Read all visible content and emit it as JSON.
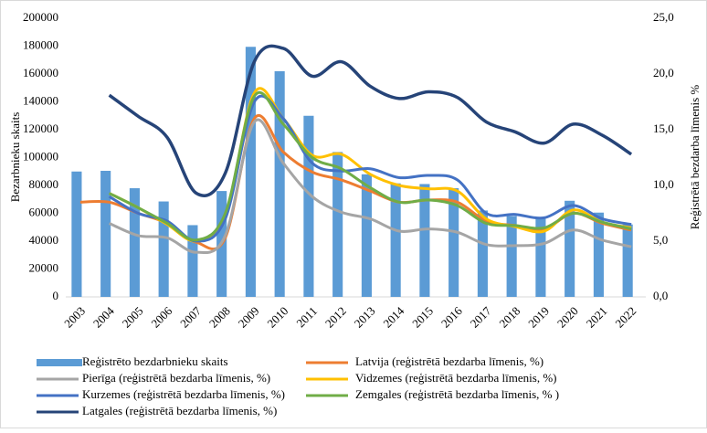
{
  "chart_data": {
    "type": "bar-line",
    "y_label": "Bezarbnieku skaits",
    "y2_label": "Reģistrētā bezdarba līmenis %",
    "categories": [
      "2003",
      "2004",
      "2005",
      "2006",
      "2007",
      "2008",
      "2009",
      "2010",
      "2011",
      "2012",
      "2013",
      "2014",
      "2015",
      "2016",
      "2017",
      "2018",
      "2019",
      "2020",
      "2021",
      "2022"
    ],
    "ylim": [
      0,
      200000
    ],
    "yticks": [
      0,
      20000,
      40000,
      60000,
      80000,
      100000,
      120000,
      140000,
      160000,
      180000,
      200000
    ],
    "y2lim": [
      0,
      25
    ],
    "y2ticks": [
      {
        "value": 0,
        "label": "0,0"
      },
      {
        "value": 5,
        "label": "5,0"
      },
      {
        "value": 10,
        "label": "10,0"
      },
      {
        "value": 15,
        "label": "15,0"
      },
      {
        "value": 20,
        "label": "20,0"
      },
      {
        "value": 25,
        "label": "25,0"
      }
    ],
    "series": [
      {
        "name": "Reģistrēto bezdarbnieku skaits",
        "type": "bar",
        "color": "#5b9bd5",
        "values": [
          90000,
          90500,
          78000,
          68500,
          51500,
          76000,
          179500,
          162000,
          130000,
          104000,
          88000,
          81500,
          81000,
          78000,
          62000,
          58000,
          56000,
          69000,
          60500,
          52000
        ]
      },
      {
        "name": "Latvija (reģistrētā bezdarba līmenis, %)",
        "type": "line",
        "axis": "y2",
        "color": "#ed7d31",
        "values": [
          8.5,
          8.5,
          7.5,
          6.6,
          4.9,
          5.3,
          16.0,
          13.0,
          11.2,
          10.5,
          9.5,
          8.5,
          8.7,
          8.5,
          6.8,
          6.4,
          6.1,
          7.5,
          6.6,
          6.0
        ]
      },
      {
        "name": "Pierīga (reģistrētā bezdarba līmenis, %)",
        "type": "line",
        "axis": "y2",
        "color": "#a5a5a5",
        "values": [
          null,
          6.6,
          5.5,
          5.3,
          4.0,
          5.5,
          15.7,
          12.0,
          9.0,
          7.6,
          7.0,
          5.9,
          6.1,
          5.8,
          4.7,
          4.6,
          4.8,
          6.0,
          5.1,
          4.5
        ]
      },
      {
        "name": "Vidzemes (reģistrētā bezdarba līmenis, %)",
        "type": "line",
        "axis": "y2",
        "color": "#ffc000",
        "values": [
          null,
          9.3,
          8.0,
          6.5,
          5.0,
          7.2,
          18.3,
          16.0,
          12.7,
          12.8,
          11.0,
          10.0,
          9.7,
          9.5,
          7.0,
          6.3,
          5.9,
          7.8,
          6.7,
          6.2
        ]
      },
      {
        "name": "Kurzemes (reģistrētā bezdarba līmenis, %)",
        "type": "line",
        "axis": "y2",
        "color": "#4472c4",
        "values": [
          null,
          9.0,
          7.5,
          6.8,
          5.0,
          7.0,
          17.5,
          16.0,
          12.0,
          11.3,
          11.5,
          10.7,
          10.9,
          10.5,
          7.5,
          7.4,
          7.1,
          8.2,
          7.0,
          6.5
        ]
      },
      {
        "name": "Zemgales (reģistrētā bezdarba līmenis, % )",
        "type": "line",
        "axis": "y2",
        "color": "#70ad47",
        "values": [
          null,
          9.3,
          8.0,
          6.6,
          5.1,
          7.5,
          18.0,
          15.5,
          12.5,
          11.5,
          9.8,
          8.5,
          8.7,
          8.2,
          6.6,
          6.4,
          6.2,
          7.5,
          6.7,
          6.1
        ]
      },
      {
        "name": "Latgales (reģistrētā bezdarba līmenis, %)",
        "type": "line",
        "axis": "y2",
        "color": "#264478",
        "values": [
          null,
          18.1,
          16.2,
          14.3,
          9.3,
          11.1,
          21.1,
          22.3,
          19.8,
          21.1,
          18.9,
          17.8,
          18.4,
          17.9,
          15.7,
          14.8,
          13.8,
          15.5,
          14.5,
          12.8
        ]
      }
    ]
  }
}
